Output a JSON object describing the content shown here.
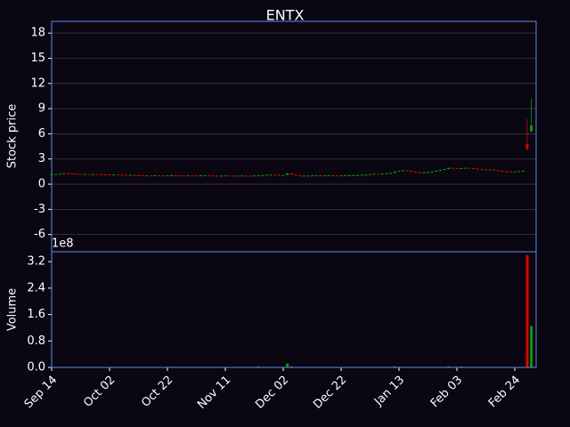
{
  "chart_data": {
    "type": "candlestick",
    "title": "ENTX",
    "ylabel": "Stock price",
    "volume_ylabel": "Volume",
    "volume_offset_label": "1e8",
    "up_color": "#00a000",
    "down_color": "#e00000",
    "grid": true,
    "ylim": [
      -8.05,
      19.4
    ],
    "yticks": [
      -6,
      -3,
      0,
      3,
      6,
      9,
      12,
      15,
      18
    ],
    "volume_ylim": [
      0,
      350000000
    ],
    "volume_yticks": [
      {
        "value": 0,
        "label": "0.0"
      },
      {
        "value": 80000000,
        "label": "0.8"
      },
      {
        "value": 160000000,
        "label": "1.6"
      },
      {
        "value": 240000000,
        "label": "2.4"
      },
      {
        "value": 320000000,
        "label": "3.2"
      }
    ],
    "categories": [
      "Sep 14",
      null,
      null,
      null,
      null,
      null,
      null,
      null,
      null,
      null,
      null,
      null,
      null,
      null,
      "Oct 02",
      null,
      null,
      null,
      null,
      null,
      null,
      null,
      null,
      null,
      null,
      null,
      null,
      null,
      "Oct 22",
      null,
      null,
      null,
      null,
      null,
      null,
      null,
      null,
      null,
      null,
      null,
      null,
      null,
      "Nov 11",
      null,
      null,
      null,
      null,
      null,
      null,
      null,
      null,
      null,
      null,
      null,
      null,
      null,
      "Dec 02",
      null,
      null,
      null,
      null,
      null,
      null,
      null,
      null,
      null,
      null,
      null,
      null,
      null,
      "Dec 22",
      null,
      null,
      null,
      null,
      null,
      null,
      null,
      null,
      null,
      null,
      null,
      null,
      null,
      "Jan 13",
      null,
      null,
      null,
      null,
      null,
      null,
      null,
      null,
      null,
      null,
      null,
      null,
      null,
      "Feb 03",
      null,
      null,
      null,
      null,
      null,
      null,
      null,
      null,
      null,
      null,
      null,
      null,
      null,
      "Feb 24",
      null,
      null,
      null,
      null
    ],
    "open": [
      1.12,
      1.15,
      1.2,
      1.25,
      1.3,
      1.28,
      1.25,
      1.22,
      1.2,
      1.2,
      1.18,
      1.2,
      1.18,
      1.17,
      1.16,
      1.15,
      1.15,
      1.14,
      1.12,
      1.1,
      1.1,
      1.08,
      1.06,
      1.05,
      1.05,
      1.04,
      1.06,
      1.05,
      1.04,
      1.05,
      1.06,
      1.05,
      1.04,
      1.03,
      1.05,
      1.04,
      1.03,
      1.04,
      1.05,
      1.04,
      1.03,
      1.02,
      1.02,
      1.03,
      1.02,
      1.01,
      1.02,
      1.03,
      1.02,
      1.01,
      1.03,
      1.05,
      1.1,
      1.12,
      1.15,
      1.12,
      1.1,
      1.1,
      1.3,
      1.15,
      1.05,
      1.0,
      1.02,
      1.03,
      1.04,
      1.05,
      1.04,
      1.05,
      1.06,
      1.05,
      1.04,
      1.05,
      1.06,
      1.07,
      1.08,
      1.1,
      1.12,
      1.15,
      1.2,
      1.25,
      1.2,
      1.25,
      1.3,
      1.35,
      1.5,
      1.6,
      1.65,
      1.6,
      1.5,
      1.45,
      1.4,
      1.42,
      1.45,
      1.5,
      1.6,
      1.7,
      1.8,
      1.95,
      1.9,
      1.85,
      1.9,
      1.95,
      1.9,
      1.85,
      1.8,
      1.75,
      1.7,
      1.75,
      1.65,
      1.6,
      1.55,
      1.5,
      1.45,
      1.5,
      1.55,
      4.8,
      6.3
    ],
    "close": [
      1.15,
      1.2,
      1.25,
      1.3,
      1.28,
      1.25,
      1.22,
      1.2,
      1.2,
      1.18,
      1.2,
      1.18,
      1.17,
      1.16,
      1.15,
      1.15,
      1.14,
      1.12,
      1.1,
      1.1,
      1.08,
      1.06,
      1.05,
      1.05,
      1.04,
      1.06,
      1.05,
      1.04,
      1.05,
      1.06,
      1.05,
      1.04,
      1.03,
      1.05,
      1.04,
      1.03,
      1.04,
      1.05,
      1.04,
      1.03,
      1.02,
      1.02,
      1.03,
      1.02,
      1.01,
      1.02,
      1.03,
      1.02,
      1.01,
      1.03,
      1.05,
      1.1,
      1.12,
      1.15,
      1.12,
      1.1,
      1.1,
      1.3,
      1.15,
      1.05,
      1.0,
      1.02,
      1.03,
      1.04,
      1.05,
      1.04,
      1.05,
      1.06,
      1.05,
      1.04,
      1.05,
      1.06,
      1.07,
      1.08,
      1.1,
      1.12,
      1.15,
      1.2,
      1.25,
      1.2,
      1.25,
      1.3,
      1.35,
      1.5,
      1.6,
      1.65,
      1.6,
      1.5,
      1.45,
      1.4,
      1.42,
      1.45,
      1.5,
      1.6,
      1.7,
      1.8,
      1.95,
      1.9,
      1.85,
      1.9,
      1.95,
      1.9,
      1.85,
      1.8,
      1.75,
      1.7,
      1.75,
      1.65,
      1.6,
      1.55,
      1.5,
      1.45,
      1.5,
      1.55,
      1.6,
      4.2,
      7.0
    ],
    "high": [
      1.17,
      1.22,
      1.27,
      1.32,
      1.32,
      1.3,
      1.27,
      1.24,
      1.22,
      1.22,
      1.22,
      1.22,
      1.2,
      1.19,
      1.18,
      1.17,
      1.17,
      1.16,
      1.14,
      1.12,
      1.12,
      1.1,
      1.08,
      1.07,
      1.07,
      1.08,
      1.08,
      1.07,
      1.07,
      1.08,
      1.08,
      1.07,
      1.06,
      1.07,
      1.07,
      1.06,
      1.06,
      1.07,
      1.07,
      1.06,
      1.05,
      1.04,
      1.05,
      1.05,
      1.04,
      1.04,
      1.05,
      1.05,
      1.04,
      1.05,
      1.07,
      1.12,
      1.14,
      1.17,
      1.17,
      1.14,
      1.12,
      1.32,
      1.32,
      1.17,
      1.07,
      1.04,
      1.05,
      1.06,
      1.07,
      1.07,
      1.07,
      1.08,
      1.08,
      1.07,
      1.07,
      1.08,
      1.09,
      1.1,
      1.12,
      1.14,
      1.17,
      1.22,
      1.27,
      1.27,
      1.27,
      1.32,
      1.37,
      1.52,
      1.62,
      1.67,
      1.67,
      1.62,
      1.52,
      1.47,
      1.44,
      1.47,
      1.52,
      1.62,
      1.72,
      1.82,
      1.97,
      1.97,
      1.92,
      1.92,
      1.97,
      1.97,
      1.92,
      1.87,
      1.82,
      1.77,
      1.77,
      1.77,
      1.67,
      1.62,
      1.57,
      1.52,
      1.52,
      1.57,
      1.62,
      7.8,
      10.2
    ],
    "low": [
      1.1,
      1.13,
      1.18,
      1.23,
      1.26,
      1.23,
      1.2,
      1.18,
      1.18,
      1.16,
      1.16,
      1.16,
      1.15,
      1.14,
      1.13,
      1.13,
      1.12,
      1.1,
      1.08,
      1.08,
      1.06,
      1.04,
      1.03,
      1.03,
      1.02,
      1.02,
      1.03,
      1.02,
      1.02,
      1.03,
      1.03,
      1.02,
      1.01,
      1.01,
      1.02,
      1.01,
      1.01,
      1.02,
      1.02,
      1.01,
      1.0,
      1.0,
      1.0,
      1.0,
      0.99,
      0.99,
      1.0,
      1.0,
      0.99,
      0.99,
      1.01,
      1.03,
      1.08,
      1.1,
      1.1,
      1.08,
      1.08,
      1.08,
      1.13,
      1.03,
      0.98,
      0.98,
      1.0,
      1.01,
      1.02,
      1.02,
      1.02,
      1.03,
      1.03,
      1.02,
      1.02,
      1.03,
      1.04,
      1.05,
      1.06,
      1.08,
      1.1,
      1.13,
      1.18,
      1.18,
      1.18,
      1.23,
      1.28,
      1.33,
      1.48,
      1.58,
      1.58,
      1.48,
      1.43,
      1.38,
      1.38,
      1.4,
      1.43,
      1.48,
      1.58,
      1.68,
      1.78,
      1.88,
      1.83,
      1.83,
      1.88,
      1.88,
      1.83,
      1.78,
      1.73,
      1.68,
      1.68,
      1.63,
      1.58,
      1.53,
      1.48,
      1.43,
      1.43,
      1.48,
      1.53,
      4.0,
      6.2
    ],
    "volume": [
      1000000,
      1000000,
      1000000,
      1000000,
      1000000,
      1000000,
      1000000,
      1000000,
      1000000,
      1000000,
      1000000,
      1000000,
      1000000,
      1000000,
      1000000,
      1000000,
      1000000,
      1000000,
      1000000,
      1000000,
      1000000,
      1000000,
      1000000,
      1000000,
      1000000,
      1000000,
      1000000,
      1000000,
      1000000,
      1000000,
      1000000,
      1000000,
      1000000,
      1000000,
      1000000,
      1000000,
      1000000,
      1000000,
      1000000,
      1000000,
      1000000,
      1000000,
      1000000,
      1000000,
      1000000,
      1000000,
      1000000,
      1000000,
      1000000,
      1000000,
      3000000,
      1000000,
      1000000,
      1000000,
      1000000,
      1000000,
      1000000,
      12000000,
      4000000,
      1000000,
      1000000,
      1000000,
      1000000,
      1000000,
      1000000,
      1000000,
      1000000,
      1000000,
      1000000,
      1000000,
      1000000,
      1000000,
      1000000,
      1000000,
      1000000,
      1000000,
      1000000,
      1000000,
      1000000,
      1000000,
      1000000,
      1000000,
      1000000,
      3000000,
      1000000,
      1000000,
      1000000,
      1000000,
      1000000,
      1000000,
      1000000,
      1000000,
      1000000,
      1000000,
      1000000,
      1000000,
      3000000,
      1000000,
      1000000,
      2500000,
      1000000,
      1000000,
      1000000,
      1000000,
      1000000,
      1000000,
      1000000,
      1000000,
      1000000,
      1000000,
      1000000,
      1000000,
      1000000,
      1000000,
      1000000,
      340000000,
      125000000
    ]
  }
}
